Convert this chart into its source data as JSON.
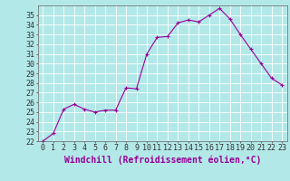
{
  "x": [
    0,
    1,
    2,
    3,
    4,
    5,
    6,
    7,
    8,
    9,
    10,
    11,
    12,
    13,
    14,
    15,
    16,
    17,
    18,
    19,
    20,
    21,
    22,
    23
  ],
  "y": [
    22.0,
    22.8,
    25.3,
    25.8,
    25.3,
    25.0,
    25.2,
    25.2,
    27.5,
    27.4,
    31.0,
    32.7,
    32.8,
    34.2,
    34.5,
    34.3,
    35.0,
    35.7,
    34.6,
    33.0,
    31.5,
    30.0,
    28.5,
    27.8
  ],
  "ylim": [
    22,
    36
  ],
  "yticks": [
    22,
    23,
    24,
    25,
    26,
    27,
    28,
    29,
    30,
    31,
    32,
    33,
    34,
    35
  ],
  "xticks": [
    0,
    1,
    2,
    3,
    4,
    5,
    6,
    7,
    8,
    9,
    10,
    11,
    12,
    13,
    14,
    15,
    16,
    17,
    18,
    19,
    20,
    21,
    22,
    23
  ],
  "xlabel": "Windchill (Refroidissement éolien,°C)",
  "line_color": "#990099",
  "marker": "+",
  "bg_color": "#b3e8e8",
  "grid_color": "#ffffff",
  "tick_fontsize": 6,
  "xlabel_fontsize": 7
}
